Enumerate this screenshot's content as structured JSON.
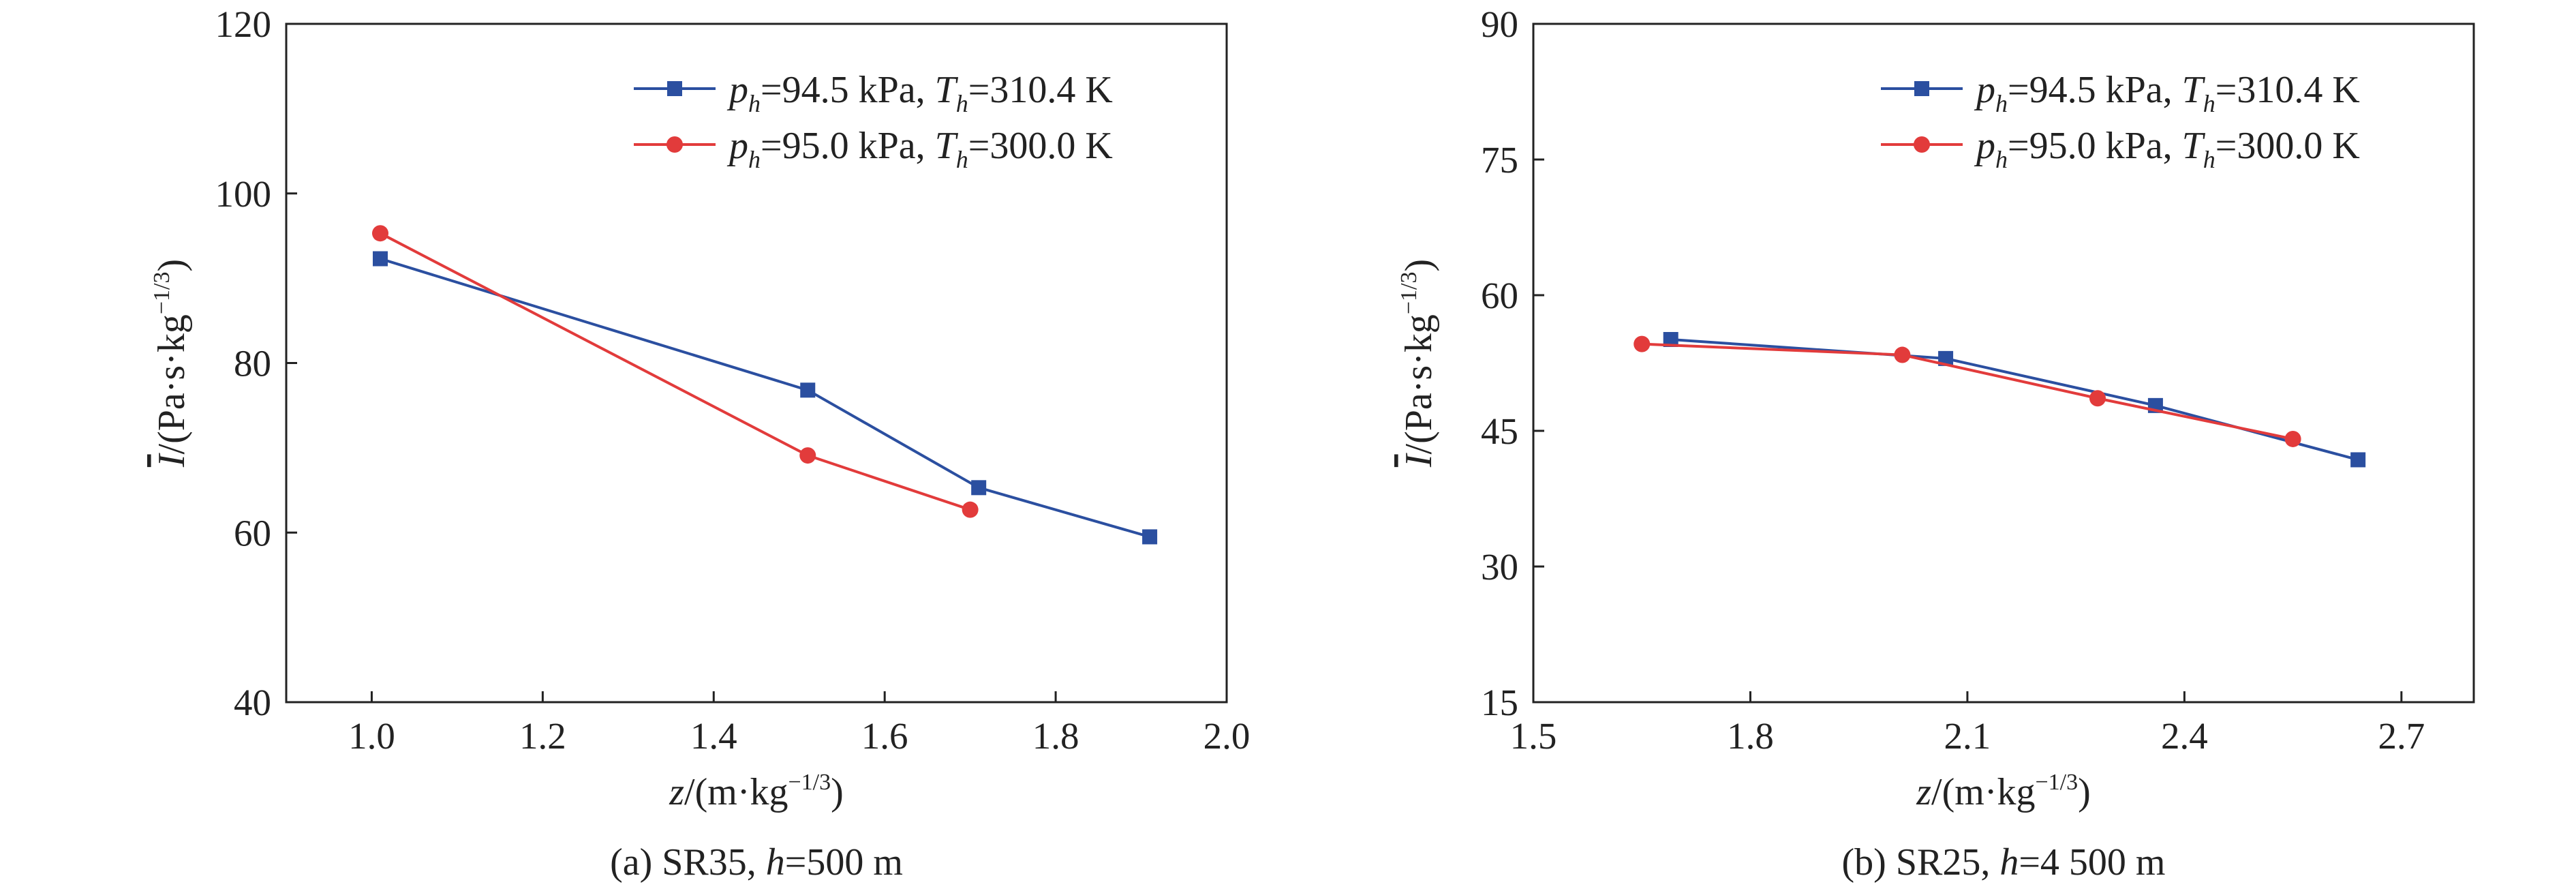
{
  "chart_data": [
    {
      "type": "line",
      "caption": {
        "prefix": "(a) SR35, ",
        "var": "h",
        "value": "=500 m"
      },
      "xlabel": {
        "var": "z",
        "unit": "/(m·kg",
        "exp": "−1/3",
        "close": ")"
      },
      "ylabel": {
        "var": "I",
        "unit": "/(Pa·s·kg",
        "exp": "−1/3",
        "close": ")"
      },
      "xlim": [
        0.9,
        2.0
      ],
      "ylim": [
        40,
        120
      ],
      "xticks": [
        "1.0",
        "1.2",
        "1.4",
        "1.6",
        "1.8",
        "2.0"
      ],
      "yticks": [
        "40",
        "60",
        "80",
        "100",
        "120"
      ],
      "legend_position": "top-right",
      "grid": false,
      "series": [
        {
          "name": "p_h=94.5 kPa, T_h=310.4 K",
          "legend": {
            "p": "p",
            "p_sub": "h",
            "p_val": "=94.5 kPa, ",
            "t": "T",
            "t_sub": "h",
            "t_val": "=310.4 K"
          },
          "color": "#2b4fa0",
          "marker": "square",
          "x": [
            1.01,
            1.51,
            1.71,
            1.91
          ],
          "y": [
            92.3,
            76.8,
            65.3,
            59.5
          ]
        },
        {
          "name": "p_h=95.0 kPa, T_h=300.0 K",
          "legend": {
            "p": "p",
            "p_sub": "h",
            "p_val": "=95.0 kPa, ",
            "t": "T",
            "t_sub": "h",
            "t_val": "=300.0 K"
          },
          "color": "#e23b3b",
          "marker": "circle",
          "x": [
            1.01,
            1.51,
            1.7
          ],
          "y": [
            95.3,
            69.1,
            62.7
          ]
        }
      ]
    },
    {
      "type": "line",
      "caption": {
        "prefix": "(b) SR25, ",
        "var": "h",
        "value": "=4 500 m"
      },
      "xlabel": {
        "var": "z",
        "unit": "/(m·kg",
        "exp": "−1/3",
        "close": ")"
      },
      "ylabel": {
        "var": "I",
        "unit": "/(Pa·s·kg",
        "exp": "−1/3",
        "close": ")"
      },
      "xlim": [
        1.5,
        2.8
      ],
      "ylim": [
        15,
        90
      ],
      "xticks": [
        "1.5",
        "1.8",
        "2.1",
        "2.4",
        "2.7"
      ],
      "yticks": [
        "15",
        "30",
        "45",
        "60",
        "75",
        "90"
      ],
      "legend_position": "top-right",
      "grid": false,
      "series": [
        {
          "name": "p_h=94.5 kPa, T_h=310.4 K",
          "legend": {
            "p": "p",
            "p_sub": "h",
            "p_val": "=94.5 kPa, ",
            "t": "T",
            "t_sub": "h",
            "t_val": "=310.4 K"
          },
          "color": "#2b4fa0",
          "marker": "square",
          "x": [
            1.69,
            2.07,
            2.36,
            2.64
          ],
          "y": [
            55.1,
            53.0,
            47.8,
            41.8
          ]
        },
        {
          "name": "p_h=95.0 kPa, T_h=300.0 K",
          "legend": {
            "p": "p",
            "p_sub": "h",
            "p_val": "=95.0 kPa, ",
            "t": "T",
            "t_sub": "h",
            "t_val": "=300.0 K"
          },
          "color": "#e23b3b",
          "marker": "circle",
          "x": [
            1.65,
            2.01,
            2.28,
            2.55
          ],
          "y": [
            54.6,
            53.4,
            48.6,
            44.1
          ]
        }
      ]
    }
  ]
}
